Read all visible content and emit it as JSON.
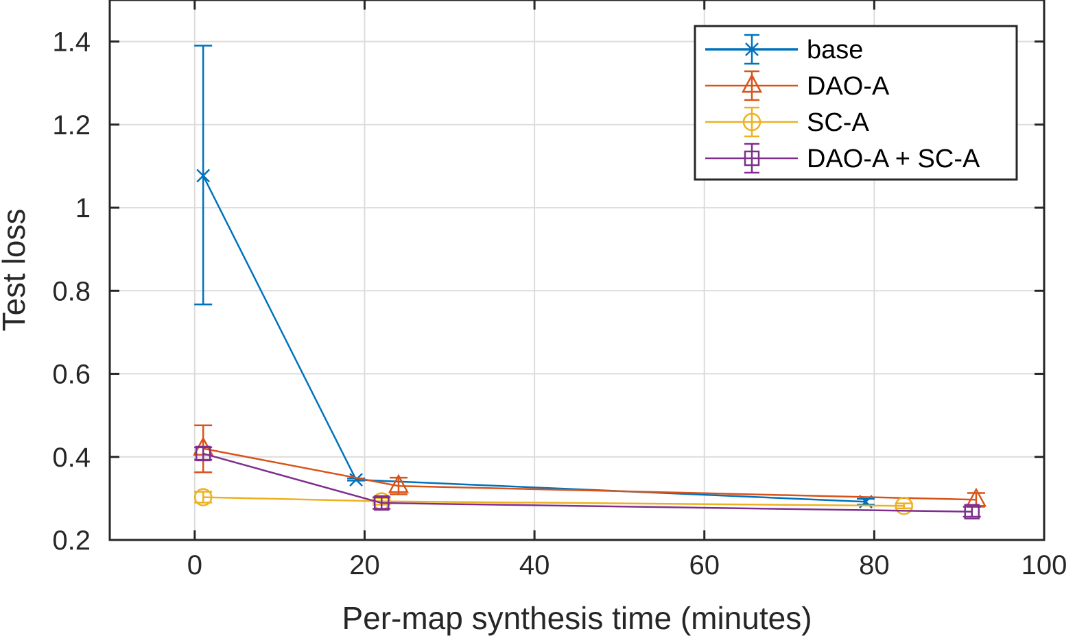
{
  "chart_data": {
    "type": "line",
    "title": "",
    "xlabel": "Per-map synthesis time (minutes)",
    "ylabel": "Test loss",
    "xlim": [
      -10,
      100
    ],
    "ylim": [
      0.2,
      1.5
    ],
    "xticks": [
      0,
      20,
      40,
      60,
      80,
      100
    ],
    "xtick_labels": [
      "0",
      "20",
      "40",
      "60",
      "80",
      "100"
    ],
    "yticks": [
      0.2,
      0.4,
      0.6,
      0.8,
      1.0,
      1.2,
      1.4
    ],
    "ytick_labels": [
      "0.2",
      "0.4",
      "0.6",
      "0.8",
      "1",
      "1.2",
      "1.4"
    ],
    "grid": true,
    "legend_position": "top-right",
    "series": [
      {
        "name": "base",
        "color": "#0072BD",
        "marker": "x",
        "x": [
          1,
          19,
          79
        ],
        "y": [
          1.077,
          0.345,
          0.292
        ],
        "err_low": [
          0.767,
          0.343,
          0.285
        ],
        "err_high": [
          1.39,
          0.348,
          0.299
        ]
      },
      {
        "name": "DAO-A",
        "color": "#D95319",
        "marker": "triangle",
        "x": [
          1,
          24,
          92
        ],
        "y": [
          0.42,
          0.33,
          0.297
        ],
        "err_low": [
          0.363,
          0.31,
          0.28
        ],
        "err_high": [
          0.476,
          0.35,
          0.313
        ]
      },
      {
        "name": "SC-A",
        "color": "#EDB120",
        "marker": "circle",
        "x": [
          1,
          22,
          83.5
        ],
        "y": [
          0.303,
          0.293,
          0.282
        ],
        "err_low": [
          0.29,
          0.285,
          0.276
        ],
        "err_high": [
          0.316,
          0.301,
          0.288
        ]
      },
      {
        "name": "DAO-A + SC-A",
        "color": "#7E2F8E",
        "marker": "square",
        "x": [
          1,
          22,
          91.5
        ],
        "y": [
          0.408,
          0.289,
          0.268
        ],
        "err_low": [
          0.393,
          0.275,
          0.256
        ],
        "err_high": [
          0.423,
          0.303,
          0.28
        ]
      }
    ]
  }
}
